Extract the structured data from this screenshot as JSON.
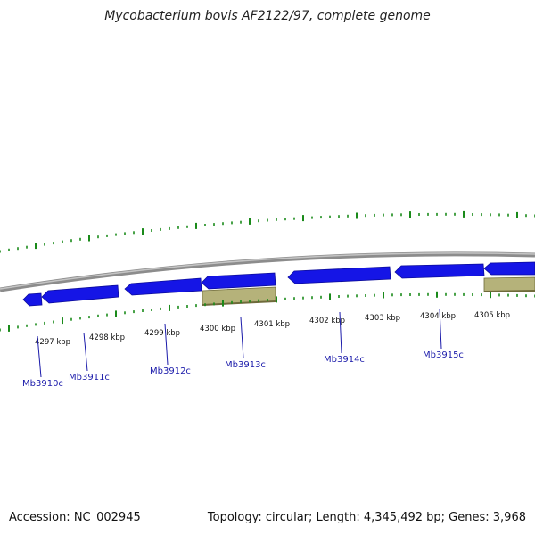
{
  "title": "Mycobacterium bovis AF2122/97, complete genome",
  "footer": {
    "accession": "Accession: NC_002945",
    "summary": "Topology: circular; Length: 4,345,492 bp; Genes: 3,968"
  },
  "colors": {
    "gene_forward": "#1515e6",
    "gene_reverse_other": "#b5b27a",
    "tick": "#1a8a1a",
    "backbone": "#8c8c8c",
    "label": "#1a1aaa"
  },
  "scale_labels": [
    "4297 kbp",
    "4298 kbp",
    "4299 kbp",
    "4300 kbp",
    "4301 kbp",
    "4302 kbp",
    "4303 kbp",
    "4304 kbp",
    "4305 kbp"
  ],
  "gene_labels": [
    "Mb3910c",
    "Mb3911c",
    "Mb3912c",
    "Mb3913c",
    "Mb3914c",
    "Mb3915c"
  ]
}
